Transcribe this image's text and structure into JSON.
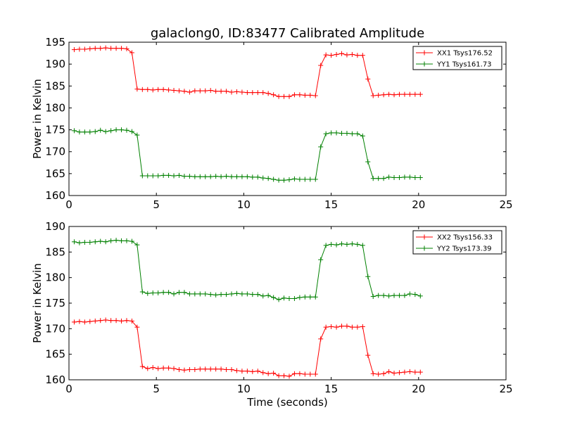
{
  "chart_data": [
    {
      "type": "line",
      "title": "galaclong0, ID:83477 Calibrated Amplitude",
      "xlabel": "",
      "ylabel": "Power in Kelvin",
      "xlim": [
        0,
        25
      ],
      "ylim": [
        160,
        195
      ],
      "xticks": [
        "0",
        "5",
        "10",
        "15",
        "20",
        "25"
      ],
      "yticks": [
        "160",
        "165",
        "170",
        "175",
        "180",
        "185",
        "190",
        "195"
      ],
      "grid": false,
      "legend": "top-right",
      "x": [
        0.3,
        0.6,
        0.9,
        1.2,
        1.5,
        1.8,
        2.1,
        2.4,
        2.7,
        3.0,
        3.3,
        3.6,
        3.9,
        4.2,
        4.5,
        4.8,
        5.1,
        5.4,
        5.7,
        6.0,
        6.3,
        6.6,
        6.9,
        7.2,
        7.5,
        7.8,
        8.1,
        8.4,
        8.7,
        9.0,
        9.3,
        9.6,
        9.9,
        10.2,
        10.5,
        10.8,
        11.1,
        11.4,
        11.7,
        12.0,
        12.3,
        12.6,
        12.9,
        13.2,
        13.5,
        13.8,
        14.1,
        14.4,
        14.7,
        15.0,
        15.3,
        15.6,
        15.9,
        16.2,
        16.5,
        16.8,
        17.1,
        17.4,
        17.7,
        18.0,
        18.3,
        18.6,
        18.9,
        19.2,
        19.5,
        19.8,
        20.1
      ],
      "series": [
        {
          "name": "XX1 Tsys176.52",
          "color": "#ff0000",
          "values": [
            193.3,
            193.4,
            193.4,
            193.5,
            193.6,
            193.6,
            193.7,
            193.6,
            193.6,
            193.6,
            193.5,
            192.6,
            184.3,
            184.2,
            184.2,
            184.1,
            184.2,
            184.2,
            184.1,
            184.0,
            183.9,
            183.8,
            183.6,
            183.9,
            183.9,
            183.9,
            184.0,
            183.8,
            183.8,
            183.8,
            183.6,
            183.7,
            183.6,
            183.5,
            183.5,
            183.5,
            183.5,
            183.3,
            183.0,
            182.6,
            182.6,
            182.6,
            183.0,
            183.0,
            182.9,
            182.9,
            182.8,
            189.7,
            192.1,
            192.0,
            192.2,
            192.4,
            192.1,
            192.2,
            192.0,
            192.0,
            186.6,
            182.8,
            182.9,
            183.0,
            183.1,
            183.0,
            183.1,
            183.1,
            183.1,
            183.1,
            183.1
          ]
        },
        {
          "name": "YY1 Tsys161.73",
          "color": "#008000",
          "values": [
            174.8,
            174.5,
            174.5,
            174.5,
            174.6,
            174.9,
            174.6,
            174.8,
            175.0,
            175.0,
            174.9,
            174.6,
            173.8,
            164.5,
            164.5,
            164.5,
            164.5,
            164.6,
            164.6,
            164.5,
            164.6,
            164.4,
            164.4,
            164.3,
            164.3,
            164.3,
            164.3,
            164.4,
            164.3,
            164.4,
            164.3,
            164.3,
            164.3,
            164.3,
            164.2,
            164.2,
            164.0,
            163.9,
            163.7,
            163.5,
            163.5,
            163.6,
            163.8,
            163.7,
            163.7,
            163.7,
            163.7,
            171.1,
            174.1,
            174.3,
            174.3,
            174.2,
            174.2,
            174.1,
            174.1,
            173.6,
            167.7,
            163.9,
            163.9,
            163.9,
            164.2,
            164.1,
            164.1,
            164.2,
            164.2,
            164.1,
            164.1
          ]
        }
      ]
    },
    {
      "type": "line",
      "title": "",
      "xlabel": "Time (seconds)",
      "ylabel": "Power in Kelvin",
      "xlim": [
        0,
        25
      ],
      "ylim": [
        160,
        190
      ],
      "xticks": [
        "0",
        "5",
        "10",
        "15",
        "20",
        "25"
      ],
      "yticks": [
        "160",
        "165",
        "170",
        "175",
        "180",
        "185",
        "190"
      ],
      "grid": false,
      "legend": "top-right",
      "x": [
        0.3,
        0.6,
        0.9,
        1.2,
        1.5,
        1.8,
        2.1,
        2.4,
        2.7,
        3.0,
        3.3,
        3.6,
        3.9,
        4.2,
        4.5,
        4.8,
        5.1,
        5.4,
        5.7,
        6.0,
        6.3,
        6.6,
        6.9,
        7.2,
        7.5,
        7.8,
        8.1,
        8.4,
        8.7,
        9.0,
        9.3,
        9.6,
        9.9,
        10.2,
        10.5,
        10.8,
        11.1,
        11.4,
        11.7,
        12.0,
        12.3,
        12.6,
        12.9,
        13.2,
        13.5,
        13.8,
        14.1,
        14.4,
        14.7,
        15.0,
        15.3,
        15.6,
        15.9,
        16.2,
        16.5,
        16.8,
        17.1,
        17.4,
        17.7,
        18.0,
        18.3,
        18.6,
        18.9,
        19.2,
        19.5,
        19.8,
        20.1
      ],
      "series": [
        {
          "name": "XX2 Tsys156.33",
          "color": "#ff0000",
          "values": [
            171.3,
            171.4,
            171.3,
            171.4,
            171.5,
            171.6,
            171.7,
            171.6,
            171.6,
            171.5,
            171.6,
            171.5,
            170.3,
            162.6,
            162.2,
            162.4,
            162.2,
            162.3,
            162.3,
            162.2,
            162.0,
            161.9,
            162.0,
            162.0,
            162.1,
            162.1,
            162.1,
            162.1,
            162.1,
            162.0,
            162.0,
            161.8,
            161.7,
            161.7,
            161.6,
            161.7,
            161.4,
            161.2,
            161.3,
            160.8,
            160.8,
            160.7,
            161.2,
            161.2,
            161.1,
            161.1,
            161.1,
            168.0,
            170.3,
            170.4,
            170.3,
            170.5,
            170.5,
            170.3,
            170.3,
            170.4,
            164.8,
            161.2,
            161.1,
            161.2,
            161.6,
            161.3,
            161.4,
            161.5,
            161.6,
            161.5,
            161.5
          ]
        },
        {
          "name": "YY2 Tsys173.39",
          "color": "#008000",
          "values": [
            187.0,
            186.8,
            186.9,
            186.9,
            187.0,
            187.1,
            187.0,
            187.2,
            187.3,
            187.2,
            187.2,
            187.1,
            186.4,
            177.2,
            176.9,
            177.0,
            177.0,
            177.1,
            177.1,
            176.8,
            177.1,
            177.1,
            176.8,
            176.8,
            176.8,
            176.8,
            176.7,
            176.6,
            176.7,
            176.7,
            176.8,
            176.9,
            176.8,
            176.8,
            176.7,
            176.7,
            176.4,
            176.5,
            176.1,
            175.7,
            176.0,
            175.9,
            175.9,
            176.1,
            176.2,
            176.2,
            176.2,
            183.5,
            186.3,
            186.5,
            186.4,
            186.6,
            186.5,
            186.6,
            186.5,
            186.3,
            180.2,
            176.3,
            176.5,
            176.5,
            176.4,
            176.5,
            176.5,
            176.5,
            176.8,
            176.7,
            176.4
          ]
        }
      ]
    }
  ]
}
